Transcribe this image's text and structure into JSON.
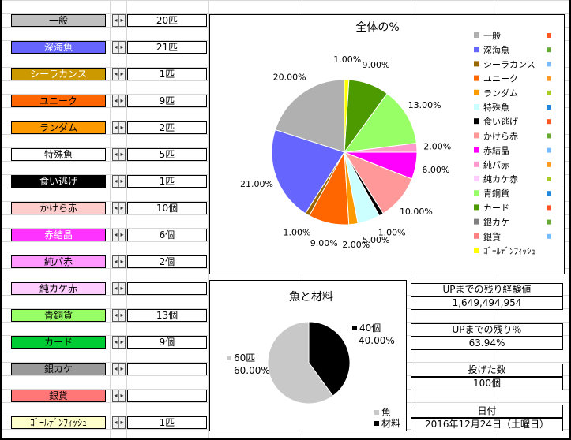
{
  "rows": [
    {
      "label": "一般",
      "bg": "#c0c0c0",
      "fg": "#000000",
      "count": "20匹"
    },
    {
      "label": "深海魚",
      "bg": "#6666ff",
      "fg": "#ffffff",
      "count": "21匹"
    },
    {
      "label": "シーラカンス",
      "bg": "#cc9900",
      "fg": "#ffffff",
      "count": "1匹"
    },
    {
      "label": "ユニーク",
      "bg": "#ff6600",
      "fg": "#000000",
      "count": "9匹"
    },
    {
      "label": "ランダム",
      "bg": "#ff9900",
      "fg": "#000000",
      "count": "2匹"
    },
    {
      "label": "特殊魚",
      "bg": "#ffffff",
      "fg": "#000000",
      "count": "5匹"
    },
    {
      "label": "食い逃げ",
      "bg": "#000000",
      "fg": "#ffffff",
      "count": "1匹"
    },
    {
      "label": "かけら赤",
      "bg": "#ffcccc",
      "fg": "#000000",
      "count": "10個"
    },
    {
      "label": "赤結晶",
      "bg": "#ff33ff",
      "fg": "#ffffff",
      "count": "6個"
    },
    {
      "label": "純パ赤",
      "bg": "#ff99ff",
      "fg": "#000000",
      "count": "2個"
    },
    {
      "label": "純カケ赤",
      "bg": "#ffccff",
      "fg": "#000000",
      "count": ""
    },
    {
      "label": "青銅貨",
      "bg": "#99ff66",
      "fg": "#000000",
      "count": "13個"
    },
    {
      "label": "カード",
      "bg": "#00cc33",
      "fg": "#000000",
      "count": "9個"
    },
    {
      "label": "銀カケ",
      "bg": "#999999",
      "fg": "#000000",
      "count": ""
    },
    {
      "label": "銀貨",
      "bg": "#ff7777",
      "fg": "#000000",
      "count": ""
    },
    {
      "label": "ｺﾞｰﾙﾃﾞﾝﾌｨｯｼｭ",
      "bg": "#ffffcc",
      "fg": "#000000",
      "count": "1匹"
    }
  ],
  "spinner": {
    "left": "◂",
    "right": "▸"
  },
  "pie_chart": {
    "title": "全体の%",
    "chart_data": {
      "type": "pie",
      "title": "全体の%",
      "slices": [
        {
          "name": "一般",
          "value": 20,
          "label": "20.00%",
          "color": "#b0b0b0"
        },
        {
          "name": "深海魚",
          "value": 21,
          "label": "21.00%",
          "color": "#6666ff"
        },
        {
          "name": "シーラカンス",
          "value": 1,
          "label": "1.00%",
          "color": "#996600"
        },
        {
          "name": "ユニーク",
          "value": 9,
          "label": "9.00%",
          "color": "#ff6600"
        },
        {
          "name": "ランダム",
          "value": 2,
          "label": "2.00%",
          "color": "#ff9900"
        },
        {
          "name": "特殊魚",
          "value": 5,
          "label": "5.00%",
          "color": "#ccffff"
        },
        {
          "name": "食い逃げ",
          "value": 1,
          "label": "1.00%",
          "color": "#000000"
        },
        {
          "name": "かけら赤",
          "value": 10,
          "label": "10.00%",
          "color": "#ff9999"
        },
        {
          "name": "赤結晶",
          "value": 6,
          "label": "6.00%",
          "color": "#ff00ff"
        },
        {
          "name": "純パ赤",
          "value": 2,
          "label": "2.00%",
          "color": "#ff99cc"
        },
        {
          "name": "純カケ赤",
          "value": 0,
          "label": "",
          "color": "#ffccff"
        },
        {
          "name": "青銅貨",
          "value": 13,
          "label": "13.00%",
          "color": "#99ff66"
        },
        {
          "name": "カード",
          "value": 9,
          "label": "9.00%",
          "color": "#4d9900"
        },
        {
          "name": "銀カケ",
          "value": 0,
          "label": "",
          "color": "#808080"
        },
        {
          "name": "銀貨",
          "value": 0,
          "label": "",
          "color": "#ff8080"
        },
        {
          "name": "ｺﾞｰﾙﾃﾞﾝﾌｨｯｼｭ",
          "value": 1,
          "label": "1.00%",
          "color": "#ffff00"
        }
      ],
      "legend_markers": [
        "#ff5522",
        "#66aa33",
        "#77bbff",
        "#ff9922",
        "#aacc22",
        "#2288dd",
        "#ff5522",
        "#66aa33",
        "#77bbff",
        "#ff9922",
        "#aacc22",
        "#2288dd",
        "#ff5522",
        "#66aa33",
        "#77bbff"
      ],
      "legend": "right"
    }
  },
  "mini_chart": {
    "title": "魚と材料",
    "chart_data": {
      "type": "pie",
      "title": "魚と材料",
      "slices": [
        {
          "name": "魚",
          "value": 60,
          "count": "60匹",
          "label": "60.00%",
          "color": "#c8c8c8"
        },
        {
          "name": "材料",
          "value": 40,
          "count": "40個",
          "label": "40.00%",
          "color": "#000000"
        }
      ],
      "legend": "bottom-right"
    }
  },
  "info": {
    "exp_title": "UPまでの残り経験値",
    "exp_value": "1,649,494,954",
    "pct_title": "UPまでの残り％",
    "pct_value": "63.94%",
    "thrown_title": "投げた数",
    "thrown_value": "100個",
    "date_title": "日付",
    "date_value": "2016年12月24日（土曜日）"
  }
}
